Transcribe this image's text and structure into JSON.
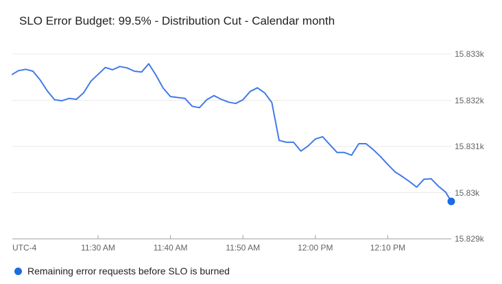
{
  "colors": {
    "line": "#4079e8",
    "end_dot": "#1c6ce0",
    "legend_dot": "#1c6ce0",
    "grid": "#e9e9e9",
    "axis": "#9e9e9e",
    "tick_mark": "#9e9e9e",
    "axis_text": "#5f6368",
    "title_text": "#202124",
    "legend_text": "#212121",
    "background": "#ffffff"
  },
  "chart_data": {
    "type": "line",
    "title": "SLO Error Budget: 99.5% - Distribution Cut - Calendar month",
    "timezone_label": "UTC-4",
    "x_ticks": [
      "11:30 AM",
      "11:40 AM",
      "11:50 AM",
      "12:00 PM",
      "12:10 PM"
    ],
    "y_ticks": [
      {
        "label": "15.833k",
        "value": 15833
      },
      {
        "label": "15.832k",
        "value": 15832
      },
      {
        "label": "15.831k",
        "value": 15831
      },
      {
        "label": "15.83k",
        "value": 15830
      },
      {
        "label": "15.829k",
        "value": 15829
      }
    ],
    "ylim": [
      15829,
      15833.2
    ],
    "x_range": [
      "11:18",
      "12:19"
    ],
    "grid": "horizontal-only",
    "legend_position": "bottom-left",
    "series": [
      {
        "name": "Remaining error requests before SLO is burned",
        "end_marker": "filled-dot",
        "points": [
          [
            "11:18",
            15832.56
          ],
          [
            "11:19",
            15832.64
          ],
          [
            "11:20",
            15832.67
          ],
          [
            "11:21",
            15832.63
          ],
          [
            "11:22",
            15832.44
          ],
          [
            "11:23",
            15832.2
          ],
          [
            "11:24",
            15832.01
          ],
          [
            "11:25",
            15831.99
          ],
          [
            "11:26",
            15832.04
          ],
          [
            "11:27",
            15832.02
          ],
          [
            "11:28",
            15832.16
          ],
          [
            "11:29",
            15832.41
          ],
          [
            "11:30",
            15832.56
          ],
          [
            "11:31",
            15832.71
          ],
          [
            "11:32",
            15832.66
          ],
          [
            "11:33",
            15832.73
          ],
          [
            "11:34",
            15832.7
          ],
          [
            "11:35",
            15832.63
          ],
          [
            "11:36",
            15832.61
          ],
          [
            "11:37",
            15832.79
          ],
          [
            "11:38",
            15832.54
          ],
          [
            "11:39",
            15832.26
          ],
          [
            "11:40",
            15832.08
          ],
          [
            "11:41",
            15832.06
          ],
          [
            "11:42",
            15832.04
          ],
          [
            "11:43",
            15831.87
          ],
          [
            "11:44",
            15831.84
          ],
          [
            "11:45",
            15832.01
          ],
          [
            "11:46",
            15832.1
          ],
          [
            "11:47",
            15832.02
          ],
          [
            "11:48",
            15831.96
          ],
          [
            "11:49",
            15831.93
          ],
          [
            "11:50",
            15832.01
          ],
          [
            "11:51",
            15832.19
          ],
          [
            "11:52",
            15832.27
          ],
          [
            "11:53",
            15832.16
          ],
          [
            "11:54",
            15831.95
          ],
          [
            "11:55",
            15831.13
          ],
          [
            "11:56",
            15831.09
          ],
          [
            "11:57",
            15831.09
          ],
          [
            "11:58",
            15830.9
          ],
          [
            "11:59",
            15831.01
          ],
          [
            "12:00",
            15831.16
          ],
          [
            "12:01",
            15831.21
          ],
          [
            "12:02",
            15831.04
          ],
          [
            "12:03",
            15830.87
          ],
          [
            "12:04",
            15830.87
          ],
          [
            "12:05",
            15830.81
          ],
          [
            "12:06",
            15831.06
          ],
          [
            "12:07",
            15831.06
          ],
          [
            "12:08",
            15830.93
          ],
          [
            "12:09",
            15830.78
          ],
          [
            "12:10",
            15830.61
          ],
          [
            "12:11",
            15830.45
          ],
          [
            "12:12",
            15830.35
          ],
          [
            "12:13",
            15830.24
          ],
          [
            "12:14",
            15830.12
          ],
          [
            "12:15",
            15830.29
          ],
          [
            "12:16",
            15830.3
          ],
          [
            "12:17",
            15830.14
          ],
          [
            "12:18",
            15830.01
          ],
          [
            "12:19",
            15829.81
          ]
        ]
      }
    ]
  }
}
